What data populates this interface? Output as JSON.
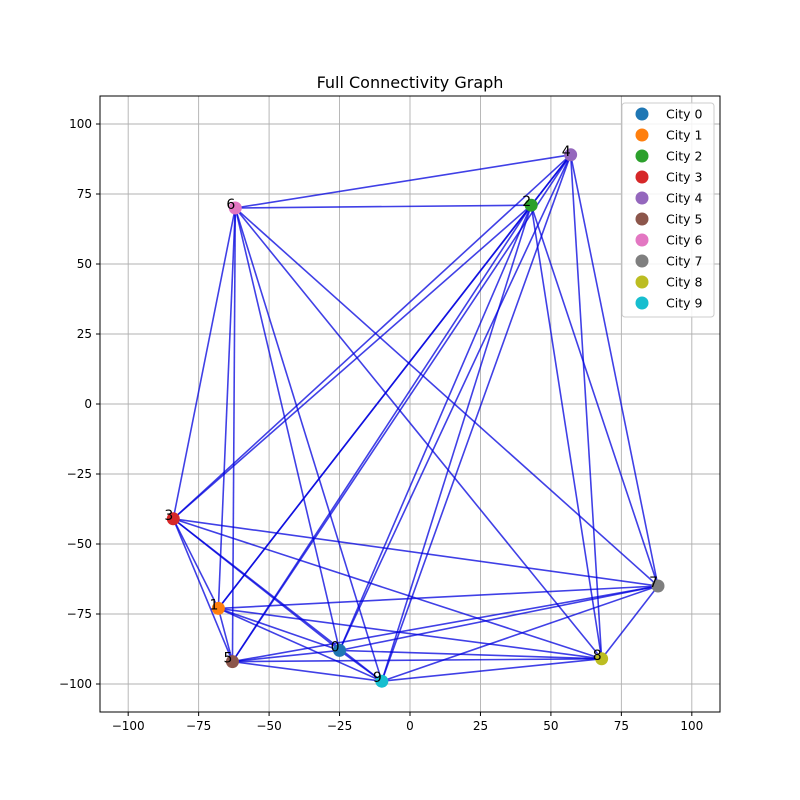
{
  "chart_data": {
    "type": "scatter",
    "title": "Full Connectivity Graph",
    "xlabel": "",
    "ylabel": "",
    "xlim": [
      -110,
      110
    ],
    "ylim": [
      -110,
      110
    ],
    "xticks": [
      -100,
      -75,
      -50,
      -25,
      0,
      25,
      50,
      75,
      100
    ],
    "yticks": [
      -100,
      -75,
      -50,
      -25,
      0,
      25,
      50,
      75,
      100
    ],
    "xtick_labels": [
      "−100",
      "−75",
      "−50",
      "−25",
      "0",
      "25",
      "50",
      "75",
      "100"
    ],
    "ytick_labels": [
      "−100",
      "−75",
      "−50",
      "−25",
      "0",
      "25",
      "50",
      "75",
      "100"
    ],
    "grid": true,
    "legend_position": "top-right",
    "edge_color": "#0000dd",
    "nodes": [
      {
        "id": "0",
        "name": "City 0",
        "x": -25,
        "y": -88,
        "color": "#1f77b4"
      },
      {
        "id": "1",
        "name": "City 1",
        "x": -68,
        "y": -73,
        "color": "#ff7f0e"
      },
      {
        "id": "2",
        "name": "City 2",
        "x": 43,
        "y": 71,
        "color": "#2ca02c"
      },
      {
        "id": "3",
        "name": "City 3",
        "x": -84,
        "y": -41,
        "color": "#d62728"
      },
      {
        "id": "4",
        "name": "City 4",
        "x": 57,
        "y": 89,
        "color": "#9467bd"
      },
      {
        "id": "5",
        "name": "City 5",
        "x": -63,
        "y": -92,
        "color": "#8c564b"
      },
      {
        "id": "6",
        "name": "City 6",
        "x": -62,
        "y": 70,
        "color": "#e377c2"
      },
      {
        "id": "7",
        "name": "City 7",
        "x": 88,
        "y": -65,
        "color": "#7f7f7f"
      },
      {
        "id": "8",
        "name": "City 8",
        "x": 68,
        "y": -91,
        "color": "#bcbd22"
      },
      {
        "id": "9",
        "name": "City 9",
        "x": -10,
        "y": -99,
        "color": "#17becf"
      }
    ],
    "edges": [
      [
        0,
        1
      ],
      [
        0,
        2
      ],
      [
        0,
        3
      ],
      [
        0,
        4
      ],
      [
        0,
        5
      ],
      [
        0,
        6
      ],
      [
        0,
        7
      ],
      [
        0,
        8
      ],
      [
        0,
        9
      ],
      [
        1,
        2
      ],
      [
        1,
        3
      ],
      [
        1,
        4
      ],
      [
        1,
        5
      ],
      [
        1,
        6
      ],
      [
        1,
        7
      ],
      [
        1,
        8
      ],
      [
        1,
        9
      ],
      [
        2,
        3
      ],
      [
        2,
        4
      ],
      [
        2,
        5
      ],
      [
        2,
        6
      ],
      [
        2,
        7
      ],
      [
        2,
        8
      ],
      [
        2,
        9
      ],
      [
        3,
        4
      ],
      [
        3,
        5
      ],
      [
        3,
        6
      ],
      [
        3,
        7
      ],
      [
        3,
        8
      ],
      [
        3,
        9
      ],
      [
        4,
        5
      ],
      [
        4,
        6
      ],
      [
        4,
        7
      ],
      [
        4,
        8
      ],
      [
        4,
        9
      ],
      [
        5,
        6
      ],
      [
        5,
        7
      ],
      [
        5,
        8
      ],
      [
        5,
        9
      ],
      [
        6,
        7
      ],
      [
        6,
        8
      ],
      [
        6,
        9
      ],
      [
        7,
        8
      ],
      [
        7,
        9
      ],
      [
        8,
        9
      ]
    ]
  }
}
